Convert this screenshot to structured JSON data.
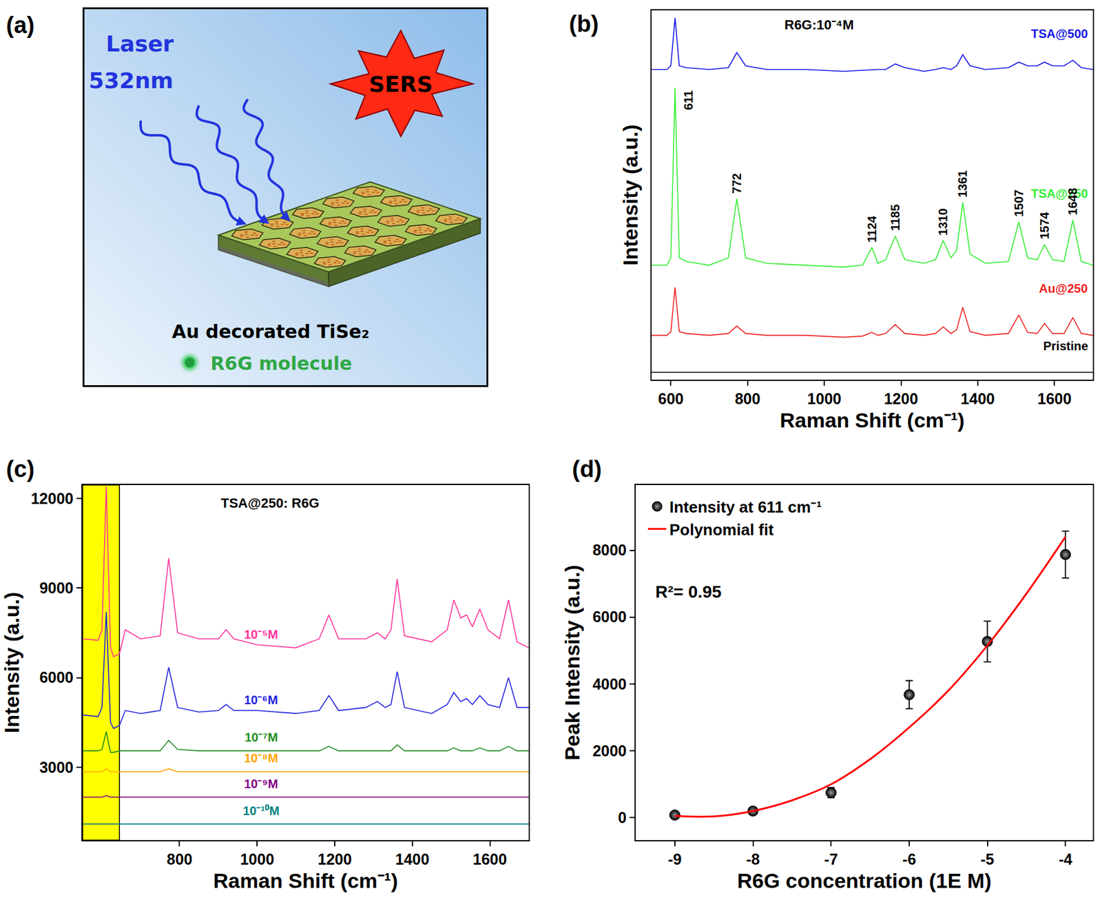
{
  "diagram": {
    "panel_label": "(a)",
    "laser": "Laser",
    "wavelength": "532nm",
    "effect": "SERS",
    "substrate": "Au decorated TiSe₂",
    "molecule": "R6G molecule"
  },
  "chart_data": [
    {
      "panel_label": "(b)",
      "type": "line",
      "title": "R6G:10⁻⁴M",
      "x_label": "Raman Shift (cm⁻¹)",
      "y_label": "Intensity (a.u.)",
      "xlim": [
        550,
        1700
      ],
      "xticks": [
        600,
        800,
        1000,
        1200,
        1400,
        1600
      ],
      "ylim": [
        0,
        100
      ],
      "tick_labels": "x",
      "grid": false,
      "x": [
        550,
        590,
        600,
        611,
        622,
        640,
        700,
        750,
        772,
        795,
        850,
        950,
        1050,
        1100,
        1124,
        1140,
        1160,
        1185,
        1210,
        1260,
        1290,
        1310,
        1330,
        1345,
        1361,
        1380,
        1420,
        1480,
        1507,
        1530,
        1555,
        1574,
        1595,
        1625,
        1648,
        1670,
        1700
      ],
      "series": [
        {
          "name": "TSA@500",
          "color": "#1414e6",
          "values": [
            84,
            84,
            85,
            98,
            85,
            84.5,
            84,
            84.5,
            88.6,
            85,
            84,
            84,
            83.5,
            83.8,
            84,
            84,
            84,
            85.5,
            84.5,
            83.5,
            84,
            84.5,
            84,
            85,
            88,
            85,
            84,
            84.5,
            86,
            85,
            85,
            86,
            85,
            85,
            86.5,
            84.5,
            84
          ]
        },
        {
          "name": "TSA@250",
          "color": "#33ee33",
          "values": [
            31,
            31,
            33,
            79,
            33,
            32,
            31,
            33,
            49,
            33,
            31.5,
            31,
            30.5,
            31,
            35.8,
            31.5,
            32.5,
            38.9,
            32.5,
            31.5,
            32.5,
            37.7,
            33,
            35,
            48,
            34,
            31.5,
            32,
            42.7,
            33,
            32.5,
            36.6,
            32.5,
            32,
            43.2,
            32,
            31
          ]
        },
        {
          "name": "Au@250",
          "color": "#ee2222",
          "values": [
            12,
            12,
            13,
            25,
            13,
            12.5,
            12,
            12.5,
            14.5,
            12.5,
            12,
            12,
            11.5,
            11.8,
            12.8,
            12,
            12.5,
            14.9,
            12.5,
            12,
            12.5,
            14.3,
            12.5,
            13.5,
            19.6,
            13,
            12,
            12.5,
            17.5,
            12.8,
            12.5,
            15.2,
            12.5,
            12.5,
            16.8,
            12.5,
            12
          ]
        },
        {
          "name": "Pristine",
          "color": "#000000",
          "values": [
            2,
            2,
            2,
            2,
            2,
            2,
            2,
            2,
            2,
            2,
            2,
            2,
            2,
            2,
            2,
            2,
            2,
            2,
            2,
            2,
            2,
            2,
            2,
            2,
            2,
            2,
            2,
            2,
            2,
            2,
            2,
            2,
            2,
            2,
            2,
            2,
            2
          ]
        }
      ],
      "peak_labels": {
        "series": "TSA@250",
        "x": [
          611,
          772,
          1124,
          1185,
          1310,
          1361,
          1507,
          1574,
          1648
        ]
      }
    },
    {
      "panel_label": "(c)",
      "type": "line",
      "title": "TSA@250: R6G",
      "x_label": "Raman Shift (cm⁻¹)",
      "y_label": "Intensity (a.u.)",
      "xlim": [
        550,
        1700
      ],
      "xticks": [
        800,
        1000,
        1200,
        1400,
        1600
      ],
      "ylim": [
        560,
        12450
      ],
      "yticks": [
        3000,
        6000,
        9000,
        12000
      ],
      "grid": false,
      "highlight": [
        550,
        645
      ],
      "x": [
        550,
        590,
        600,
        611,
        622,
        630,
        645,
        660,
        700,
        750,
        772,
        795,
        850,
        900,
        920,
        940,
        1000,
        1100,
        1160,
        1185,
        1210,
        1280,
        1310,
        1330,
        1345,
        1361,
        1380,
        1450,
        1490,
        1507,
        1525,
        1540,
        1555,
        1574,
        1595,
        1625,
        1648,
        1670,
        1700
      ],
      "series": [
        {
          "name": "10⁻⁵M",
          "color": "#ff3399",
          "values": [
            7300,
            7250,
            7600,
            12400,
            7000,
            6700,
            6800,
            7600,
            7300,
            7400,
            10000,
            7500,
            7300,
            7300,
            7600,
            7300,
            7100,
            7000,
            7300,
            8100,
            7300,
            7300,
            7500,
            7300,
            7600,
            9300,
            7400,
            7200,
            7600,
            8600,
            8000,
            8100,
            7700,
            8300,
            7600,
            7300,
            8600,
            7200,
            7000
          ]
        },
        {
          "name": "10⁻⁶M",
          "color": "#1f1fe0",
          "values": [
            4750,
            4700,
            5000,
            8200,
            4500,
            4300,
            4400,
            4900,
            4800,
            4900,
            6350,
            5000,
            4850,
            4900,
            5100,
            4900,
            4900,
            4800,
            4900,
            5400,
            4900,
            5000,
            5200,
            5000,
            5100,
            6200,
            5000,
            4800,
            5100,
            5500,
            5200,
            5300,
            5100,
            5400,
            5100,
            5000,
            6000,
            5000,
            5000
          ]
        },
        {
          "name": "10⁻⁷M",
          "color": "#228b22",
          "values": [
            3550,
            3550,
            3600,
            4200,
            3500,
            3500,
            3550,
            3550,
            3550,
            3550,
            3900,
            3600,
            3550,
            3550,
            3550,
            3550,
            3550,
            3550,
            3550,
            3700,
            3550,
            3550,
            3550,
            3550,
            3550,
            3750,
            3550,
            3550,
            3550,
            3650,
            3550,
            3550,
            3550,
            3650,
            3550,
            3550,
            3700,
            3550,
            3550
          ]
        },
        {
          "name": "10⁻⁸M",
          "color": "#ffa500",
          "values": [
            2850,
            2850,
            2850,
            2950,
            2850,
            2850,
            2850,
            2850,
            2850,
            2850,
            2950,
            2850,
            2850,
            2850,
            2850,
            2850,
            2850,
            2850,
            2850,
            2850,
            2850,
            2850,
            2850,
            2850,
            2850,
            2850,
            2850,
            2850,
            2850,
            2850,
            2850,
            2850,
            2850,
            2850,
            2850,
            2850,
            2850,
            2850,
            2850
          ]
        },
        {
          "name": "10⁻⁹M",
          "color": "#800080",
          "values": [
            2000,
            2000,
            2000,
            2050,
            2000,
            2000,
            2000,
            2000,
            2000,
            2000,
            2000,
            2000,
            2000,
            2000,
            2000,
            2000,
            2000,
            2000,
            2000,
            2000,
            2000,
            2000,
            2000,
            2000,
            2000,
            2000,
            2000,
            2000,
            2000,
            2000,
            2000,
            2000,
            2000,
            2000,
            2000,
            2000,
            2000,
            2000,
            2000
          ]
        },
        {
          "name": "10⁻¹⁰M",
          "color": "#008080",
          "values": [
            1100,
            1100,
            1100,
            1100,
            1100,
            1100,
            1100,
            1100,
            1100,
            1100,
            1100,
            1100,
            1100,
            1100,
            1100,
            1100,
            1100,
            1100,
            1100,
            1100,
            1100,
            1100,
            1100,
            1100,
            1100,
            1100,
            1100,
            1100,
            1100,
            1100,
            1100,
            1100,
            1100,
            1100,
            1100,
            1100,
            1100,
            1100,
            1100
          ]
        }
      ]
    },
    {
      "panel_label": "(d)",
      "type": "scatter",
      "x_label": "R6G concentration (1E M)",
      "y_label": "Peak Intensity (a.u.)",
      "xlim": [
        -9.5,
        -3.65
      ],
      "xticks": [
        -9,
        -8,
        -7,
        -6,
        -5,
        -4
      ],
      "ylim": [
        -670,
        9950
      ],
      "yticks": [
        0,
        2000,
        4000,
        6000,
        8000
      ],
      "grid": false,
      "legend": "upper left",
      "annotations": [
        "R²= 0.95"
      ],
      "x": [
        -9,
        -8,
        -7,
        -6,
        -5,
        -4
      ],
      "series": [
        {
          "name": "Intensity at 611 cm⁻¹",
          "type": "scatter",
          "marker": "circle",
          "color": "#000000",
          "values": [
            80,
            200,
            750,
            3680,
            5270,
            7870
          ],
          "error": [
            30,
            40,
            150,
            420,
            610,
            700
          ]
        },
        {
          "name": "Polynomial fit",
          "type": "line",
          "color": "#ff0000",
          "x": [
            -9,
            -8.5,
            -8,
            -7.5,
            -7,
            -6.5,
            -6,
            -5.5,
            -5,
            -4.5,
            -4
          ],
          "values": [
            60,
            40,
            200,
            520,
            1000,
            1750,
            2700,
            3800,
            5150,
            6700,
            8400
          ]
        }
      ]
    }
  ]
}
